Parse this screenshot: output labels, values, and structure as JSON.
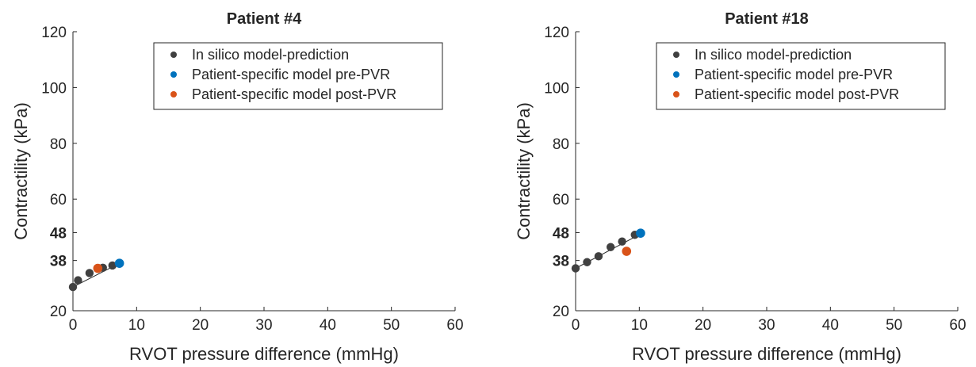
{
  "chart_data": [
    {
      "type": "scatter",
      "title": "Patient #4",
      "xlabel": "RVOT pressure difference (mmHg)",
      "ylabel": "Contractility (kPa)",
      "xlim": [
        0,
        60
      ],
      "ylim": [
        20,
        120
      ],
      "xticks": [
        "0",
        "10",
        "20",
        "30",
        "40",
        "50",
        "60"
      ],
      "yticks": [
        "20",
        "38",
        "48",
        "60",
        "80",
        "100",
        "120"
      ],
      "bold_yticks": [
        "38",
        "48"
      ],
      "grid": false,
      "legend_position": "top-right",
      "fit_line": {
        "x": [
          0,
          7.3
        ],
        "y": [
          28.5,
          37.0
        ]
      },
      "series": [
        {
          "name": "In silico model-prediction",
          "color": "#404040",
          "x": [
            0,
            0.8,
            2.6,
            4.7,
            6.2
          ],
          "y": [
            28.5,
            30.9,
            33.5,
            35.4,
            36.2
          ]
        },
        {
          "name": "Patient-specific model pre-PVR",
          "color": "#0072BD",
          "x": [
            7.3
          ],
          "y": [
            37.0
          ]
        },
        {
          "name": "Patient-specific model post-PVR",
          "color": "#D95319",
          "x": [
            3.9
          ],
          "y": [
            35.2
          ]
        }
      ]
    },
    {
      "type": "scatter",
      "title": "Patient #18",
      "xlabel": "RVOT pressure difference (mmHg)",
      "ylabel": "Contractility (kPa)",
      "xlim": [
        0,
        60
      ],
      "ylim": [
        20,
        120
      ],
      "xticks": [
        "0",
        "10",
        "20",
        "30",
        "40",
        "50",
        "60"
      ],
      "yticks": [
        "20",
        "38",
        "48",
        "60",
        "80",
        "100",
        "120"
      ],
      "bold_yticks": [
        "38",
        "48"
      ],
      "grid": false,
      "legend_position": "top-right",
      "fit_line": {
        "x": [
          0,
          10.2
        ],
        "y": [
          35.2,
          47.5
        ]
      },
      "series": [
        {
          "name": "In silico model-prediction",
          "color": "#404040",
          "x": [
            0,
            1.8,
            3.6,
            5.5,
            7.3,
            9.3
          ],
          "y": [
            35.2,
            37.4,
            39.5,
            42.8,
            44.8,
            47.2
          ]
        },
        {
          "name": "Patient-specific model pre-PVR",
          "color": "#0072BD",
          "x": [
            10.2
          ],
          "y": [
            47.8
          ]
        },
        {
          "name": "Patient-specific model post-PVR",
          "color": "#D95319",
          "x": [
            8.0
          ],
          "y": [
            41.3
          ]
        }
      ]
    }
  ]
}
